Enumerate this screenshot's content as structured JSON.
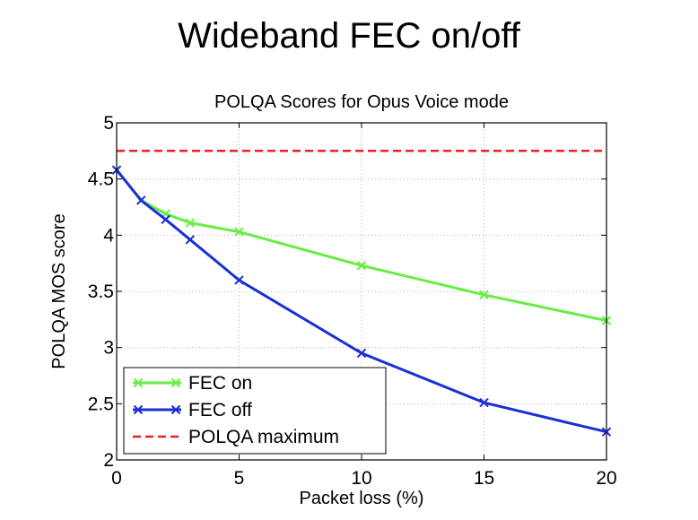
{
  "slide_title": "Wideband FEC on/off",
  "chart_data": {
    "type": "line",
    "title": "POLQA Scores for Opus Voice mode",
    "xlabel": "Packet loss (%)",
    "ylabel": "POLQA MOS score",
    "xlim": [
      0,
      20
    ],
    "ylim": [
      2,
      5
    ],
    "xticks": [
      0,
      5,
      10,
      15,
      20
    ],
    "yticks": [
      2,
      2.5,
      3,
      3.5,
      4,
      4.5,
      5
    ],
    "ytick_labels": [
      "2",
      "2.5",
      "3",
      "3.5",
      "4",
      "4.5",
      "5"
    ],
    "grid": true,
    "legend_position": "bottom-left",
    "series": [
      {
        "name": "FEC on",
        "color": "#66ee44",
        "marker": "x",
        "x": [
          0,
          1,
          2,
          3,
          5,
          10,
          15,
          20
        ],
        "y": [
          4.58,
          4.31,
          4.19,
          4.11,
          4.03,
          3.73,
          3.47,
          3.24
        ]
      },
      {
        "name": "FEC off",
        "color": "#1a2fd6",
        "marker": "x",
        "x": [
          0,
          1,
          2,
          3,
          5,
          10,
          15,
          20
        ],
        "y": [
          4.58,
          4.31,
          4.14,
          3.96,
          3.6,
          2.95,
          2.51,
          2.25
        ]
      },
      {
        "name": "POLQA maximum",
        "color": "#e8221c",
        "style": "dashed",
        "x": [
          0,
          20
        ],
        "y": [
          4.75,
          4.75
        ]
      }
    ]
  }
}
